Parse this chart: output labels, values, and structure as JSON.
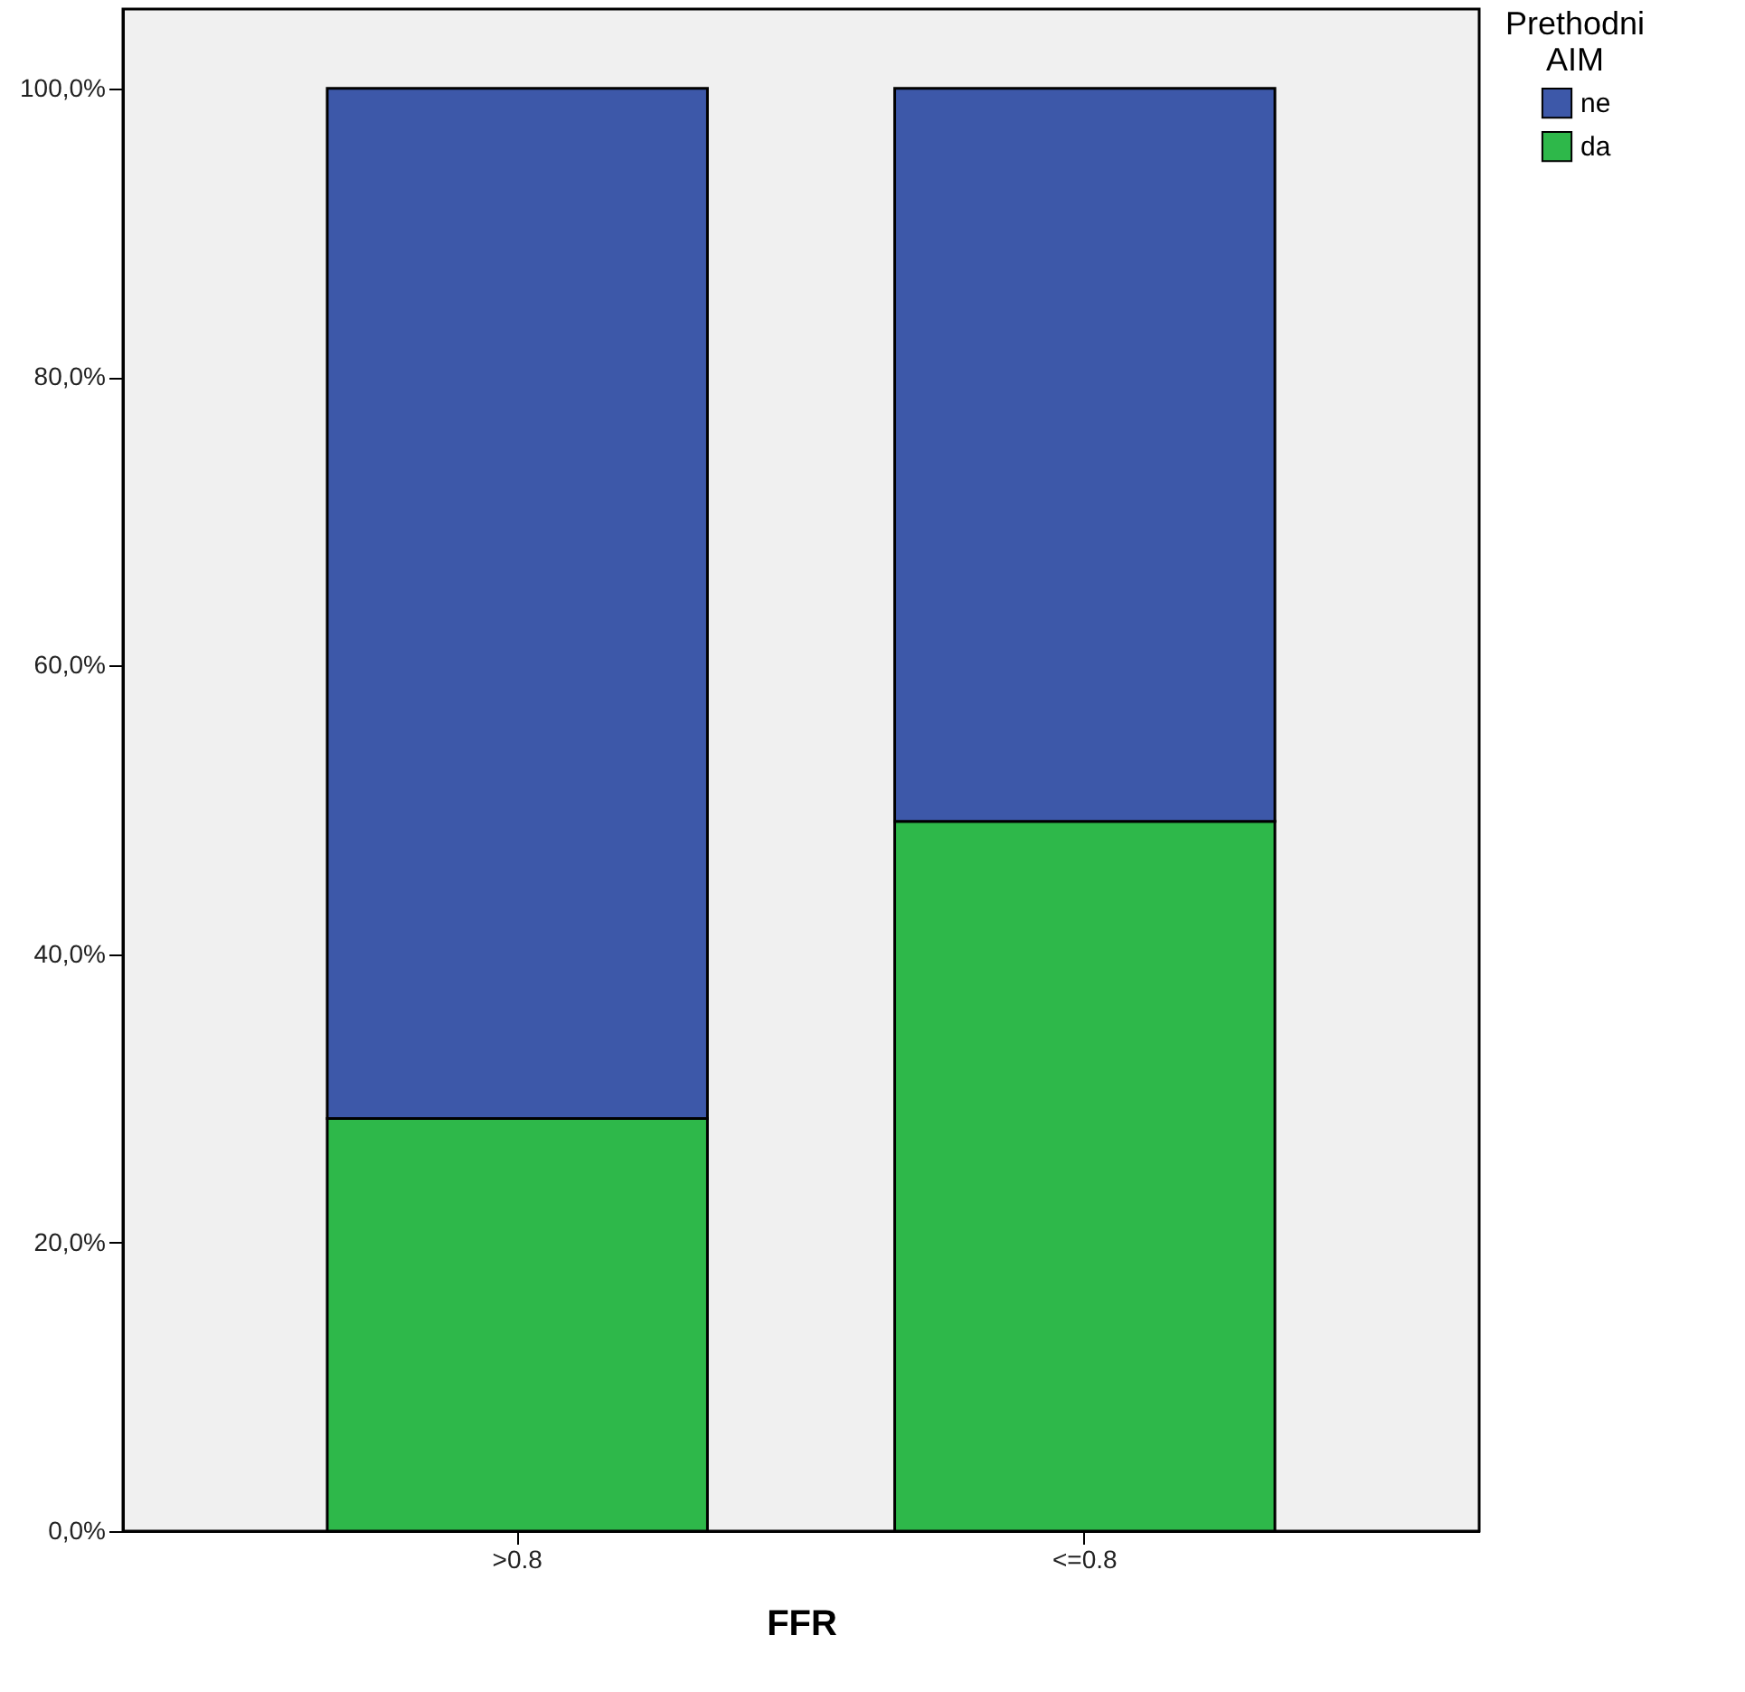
{
  "chart_data": {
    "type": "bar",
    "stacked": true,
    "xlabel": "FFR",
    "legend_title": "Prethodni AIM",
    "legend": "top right",
    "categories": [
      ">0.8",
      "<=0.8"
    ],
    "series": [
      {
        "name": "da",
        "color": "#2eb84a",
        "values": [
          28.6,
          49.2
        ]
      },
      {
        "name": "ne",
        "color": "#3d58a9",
        "values": [
          71.4,
          50.8
        ]
      }
    ],
    "ylim": [
      0,
      105.5
    ],
    "yticks": [
      {
        "value": 0,
        "label": "0,0%"
      },
      {
        "value": 20,
        "label": "20,0%"
      },
      {
        "value": 40,
        "label": "40,0%"
      },
      {
        "value": 60,
        "label": "60,0%"
      },
      {
        "value": 80,
        "label": "80,0%"
      },
      {
        "value": 100,
        "label": "100,0%"
      }
    ],
    "grid": false
  }
}
